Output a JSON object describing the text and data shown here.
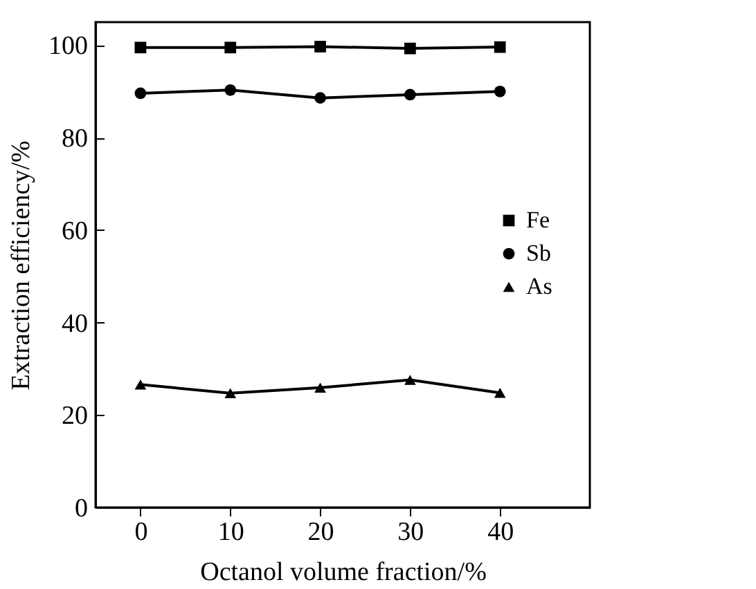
{
  "chart_data": {
    "type": "line",
    "xlabel": "Octanol volume fraction/%",
    "ylabel": "Extraction efficiency/%",
    "x": [
      0,
      10,
      20,
      30,
      40
    ],
    "series": [
      {
        "name": "Fe",
        "color": "#000000",
        "marker": "square",
        "values": [
          99.5,
          99.5,
          99.7,
          99.3,
          99.6
        ]
      },
      {
        "name": "Sb",
        "color": "#000000",
        "marker": "circle",
        "values": [
          89.6,
          90.3,
          88.6,
          89.3,
          90.0
        ]
      },
      {
        "name": "As",
        "color": "#000000",
        "marker": "triangle",
        "values": [
          26.6,
          24.7,
          25.9,
          27.6,
          24.8
        ]
      }
    ],
    "xlim": [
      -5,
      50
    ],
    "xticks": [
      0,
      10,
      20,
      30,
      40
    ],
    "ylim": [
      0,
      105
    ],
    "yticks": [
      0,
      20,
      40,
      60,
      80,
      100
    ],
    "grid": false,
    "legend": "right",
    "line_style": "solid"
  }
}
